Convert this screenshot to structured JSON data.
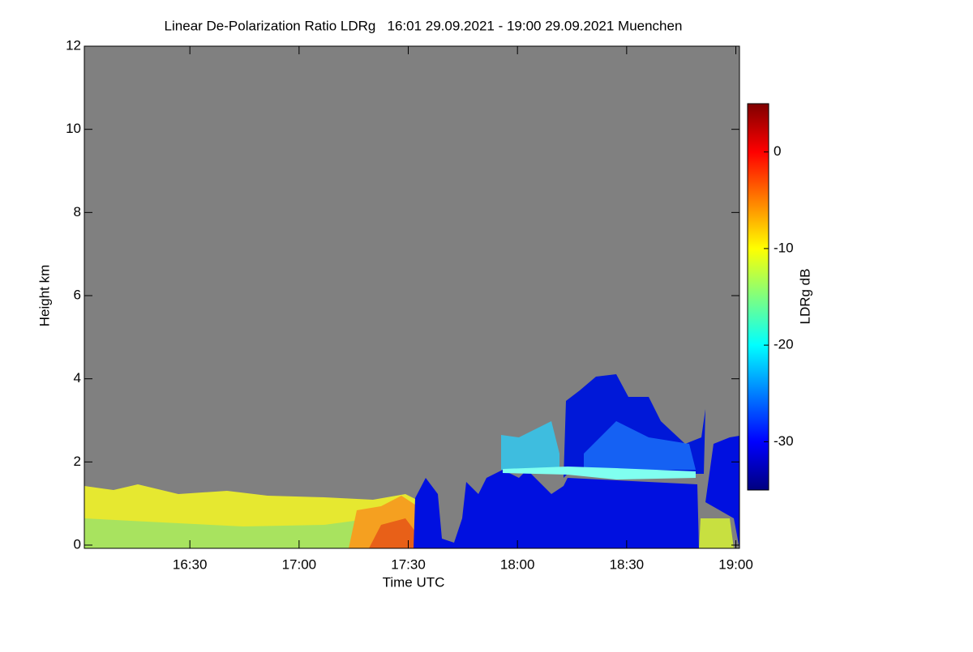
{
  "chart_data": {
    "type": "heatmap",
    "title": "Linear De-Polarization Ratio LDRg   16:01 29.09.2021 - 19:00 29.09.2021 Muenchen",
    "x_label": "Time UTC",
    "y_label": "Height km",
    "xlim": [
      961,
      1141
    ],
    "xticks": [
      {
        "value": 990,
        "label": "16:30"
      },
      {
        "value": 1020,
        "label": "17:00"
      },
      {
        "value": 1050,
        "label": "17:30"
      },
      {
        "value": 1080,
        "label": "18:00"
      },
      {
        "value": 1110,
        "label": "18:30"
      },
      {
        "value": 1140,
        "label": "19:00"
      }
    ],
    "ylim": [
      0,
      12
    ],
    "yticks": [
      0,
      2,
      4,
      6,
      8,
      10,
      12
    ],
    "colorbar_label": "LDRg dB",
    "clim": [
      -35,
      5
    ],
    "cticks": [
      0,
      -10,
      -20,
      -30
    ],
    "colormap": [
      "#00007f",
      "#0000ff",
      "#007fff",
      "#00ffff",
      "#7fff7f",
      "#ffff00",
      "#ff7f00",
      "#ff0000",
      "#7f0000"
    ]
  }
}
